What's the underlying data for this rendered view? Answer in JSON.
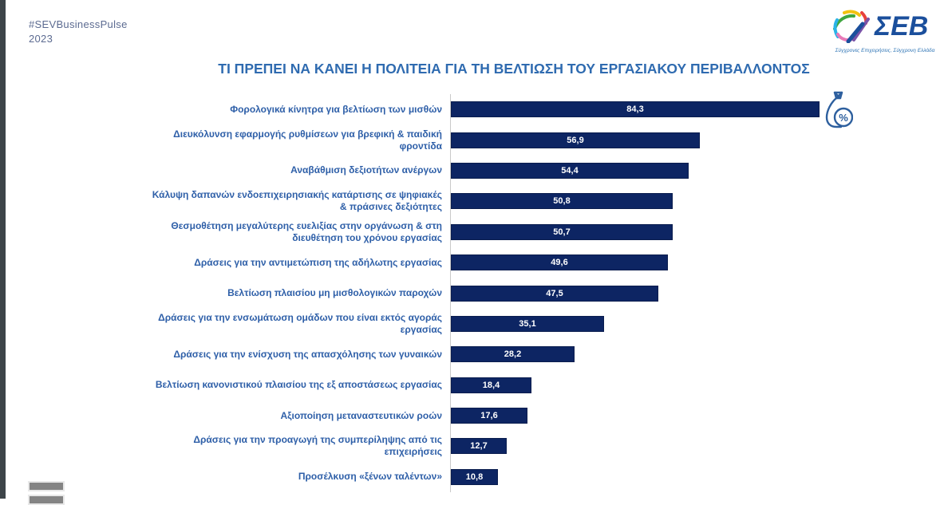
{
  "header": {
    "hashtag": "#SEVBusinessPulse",
    "year": "2023"
  },
  "logo": {
    "text": "ΣΕΒ",
    "tagline": "Σύγχρονες Επιχειρήσεις, Σύγχρονη Ελλάδα"
  },
  "title": "ΤΙ ΠΡΕΠΕΙ ΝΑ ΚΑΝΕΙ Η ΠΟΛΙΤΕΙΑ ΓΙΑ ΤΗ ΒΕΛΤΙΩΣΗ ΤΟΥ ΕΡΓΑΣΙΑΚΟΥ ΠΕΡΙΒΑΛΛΟΝΤΟΣ",
  "chart_data": {
    "type": "bar",
    "orientation": "horizontal",
    "title": "ΤΙ ΠΡΕΠΕΙ ΝΑ ΚΑΝΕΙ Η ΠΟΛΙΤΕΙΑ ΓΙΑ ΤΗ ΒΕΛΤΙΩΣΗ ΤΟΥ ΕΡΓΑΣΙΑΚΟΥ ΠΕΡΙΒΑΛΛΟΝΤΟΣ",
    "categories": [
      "Φορολογικά κίνητρα για βελτίωση των μισθών",
      "Διευκόλυνση εφαρμογής ρυθμίσεων για βρεφική & παιδική φροντίδα",
      "Αναβάθμιση δεξιοτήτων ανέργων",
      "Κάλυψη δαπανών ενδοεπιχειρησιακής κατάρτισης σε ψηφιακές & πράσινες δεξιότητες",
      "Θεσμοθέτηση μεγαλύτερης ευελιξίας στην οργάνωση & στη διευθέτηση του χρόνου εργασίας",
      "Δράσεις για την αντιμετώπιση της αδήλωτης εργασίας",
      "Βελτίωση πλαισίου μη μισθολογικών παροχών",
      "Δράσεις για την ενσωμάτωση ομάδων που είναι εκτός αγοράς εργασίας",
      "Δράσεις για την ενίσχυση της απασχόλησης των γυναικών",
      "Βελτίωση κανονιστικού πλαισίου της εξ αποστάσεως εργασίας",
      "Αξιοποίηση μεταναστευτικών ροών",
      "Δράσεις για την προαγωγή της συμπερίληψης από τις επιχειρήσεις",
      "Προσέλκυση «ξένων ταλέντων»"
    ],
    "values": [
      84.3,
      56.9,
      54.4,
      50.8,
      50.7,
      49.6,
      47.5,
      35.1,
      28.2,
      18.4,
      17.6,
      12.7,
      10.8
    ],
    "value_labels": [
      "84,3",
      "56,9",
      "54,4",
      "50,8",
      "50,7",
      "49,6",
      "47,5",
      "35,1",
      "28,2",
      "18,4",
      "17,6",
      "12,7",
      "10,8"
    ],
    "xlim": [
      0,
      90
    ],
    "grid": false,
    "legend": null,
    "value_labels_position": "inside-center",
    "bar_color": "#0d2563",
    "value_label_color": "#ffffff",
    "category_label_color": "#2e5fa8",
    "annotation_icon": "money-bag-percent-icon"
  },
  "colors": {
    "title": "#2f6bb0",
    "hashtag": "#5c6b91",
    "bar": "#0d2563",
    "axis_line": "#c9c9c9",
    "left_stripe": "#3d4449",
    "thumbnail_gray": "#848484",
    "logo_blue": "#1b4f9c"
  }
}
